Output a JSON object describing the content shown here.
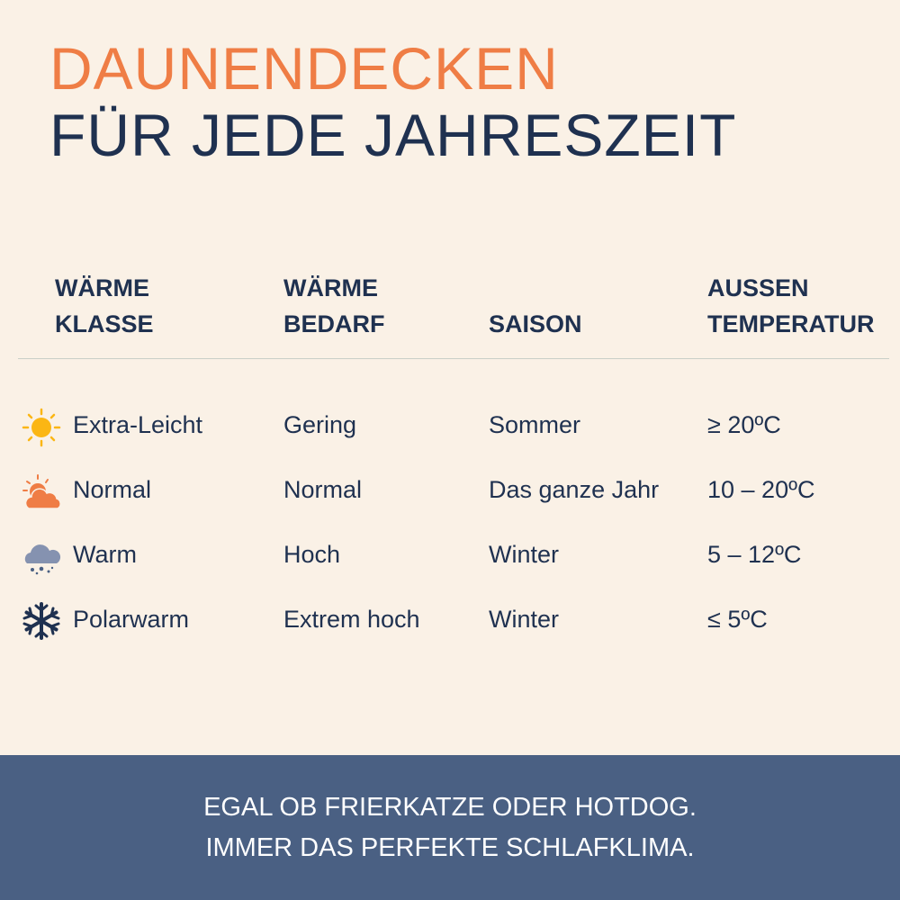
{
  "title": {
    "line1": "DAUNENDECKEN",
    "line2": "FÜR JEDE JAHRESZEIT"
  },
  "headers": {
    "klasse": [
      "WÄRME",
      "KLASSE"
    ],
    "bedarf": [
      "WÄRME",
      "BEDARF"
    ],
    "saison": "SAISON",
    "temp": [
      "AUSSEN",
      "TEMPERATUR"
    ]
  },
  "rows": [
    {
      "icon": "sun-icon",
      "klasse": "Extra-Leicht",
      "bedarf": "Gering",
      "saison": "Sommer",
      "temp": "≥ 20ºC"
    },
    {
      "icon": "sun-cloud-icon",
      "klasse": "Normal",
      "bedarf": "Normal",
      "saison": "Das ganze Jahr",
      "temp": "10 – 20ºC"
    },
    {
      "icon": "snow-cloud-icon",
      "klasse": "Warm",
      "bedarf": "Hoch",
      "saison": "Winter",
      "temp": "5 – 12ºC"
    },
    {
      "icon": "snowflake-icon",
      "klasse": "Polarwarm",
      "bedarf": "Extrem hoch",
      "saison": "Winter",
      "temp": "≤ 5ºC"
    }
  ],
  "footer": {
    "line1": "EGAL OB FRIERKATZE ODER HOTDOG.",
    "line2": "IMMER DAS PERFEKTE SCHLAFKLIMA."
  },
  "colors": {
    "accent": "#ef7d45",
    "navy": "#1f3150",
    "footer": "#4a6083",
    "background": "#faf1e6"
  }
}
